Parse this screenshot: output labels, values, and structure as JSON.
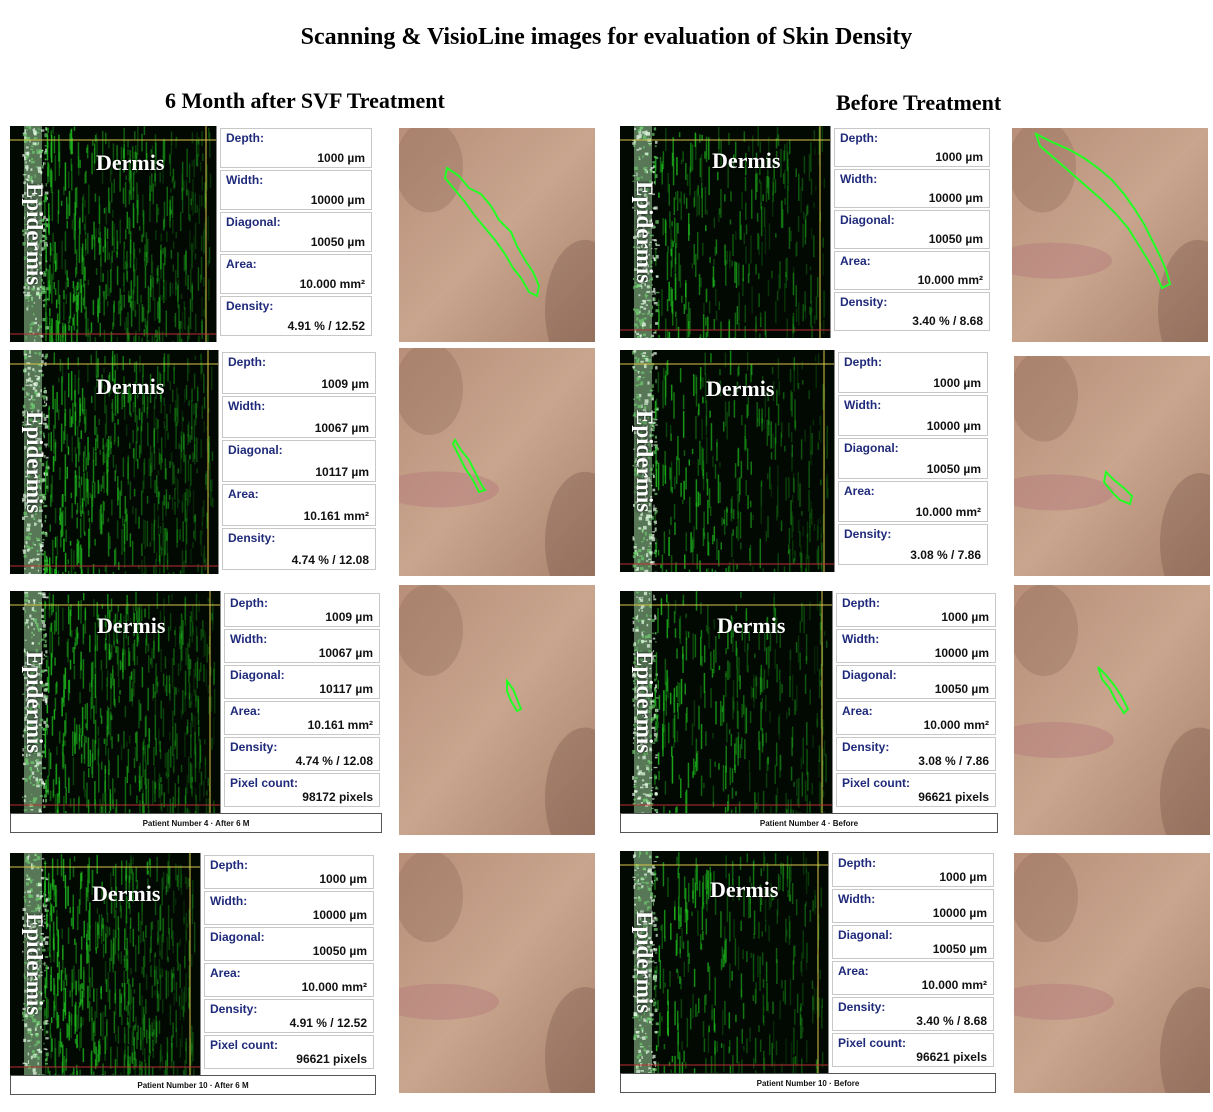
{
  "title": "Scanning & VisioLine images for evaluation of Skin Density",
  "columns": {
    "after": "6 Month after SVF Treatment",
    "before": "Before Treatment"
  },
  "labels": {
    "epidermis": "Epidermis",
    "dermis": "Dermis"
  },
  "fields": {
    "depth": "Depth:",
    "width": "Width:",
    "diagonal": "Diagonal:",
    "area": "Area:",
    "density": "Density:",
    "pixel": "Pixel count:"
  },
  "rows": [
    {
      "after": {
        "depth": "1000 µm",
        "width": "10000 µm",
        "diagonal": "10050 µm",
        "area": "10.000 mm²",
        "density": "4.91 %  /  12.52"
      },
      "before": {
        "depth": "1000 µm",
        "width": "10000 µm",
        "diagonal": "10050 µm",
        "area": "10.000 mm²",
        "density": "3.40 %  /  8.68"
      }
    },
    {
      "after": {
        "depth": "1009 µm",
        "width": "10067 µm",
        "diagonal": "10117 µm",
        "area": "10.161 mm²",
        "density": "4.74 %  /  12.08"
      },
      "before": {
        "depth": "1000 µm",
        "width": "10000 µm",
        "diagonal": "10050 µm",
        "area": "10.000 mm²",
        "density": "3.08 %  /  7.86"
      }
    },
    {
      "after": {
        "depth": "1009 µm",
        "width": "10067 µm",
        "diagonal": "10117 µm",
        "area": "10.161 mm²",
        "density": "4.74 %  /  12.08",
        "pixel": "98172 pixels",
        "footer": "Patient Number  4   ·   After 6 M"
      },
      "before": {
        "depth": "1000 µm",
        "width": "10000 µm",
        "diagonal": "10050 µm",
        "area": "10.000 mm²",
        "density": "3.08 %  /  7.86",
        "pixel": "96621 pixels",
        "footer": "Patient Number  4   ·        Before"
      }
    },
    {
      "after": {
        "depth": "1000 µm",
        "width": "10000 µm",
        "diagonal": "10050 µm",
        "area": "10.000 mm²",
        "density": "4.91 %  /  12.52",
        "pixel": "96621 pixels",
        "footer": "Patient Number  10   ·   After 6 M"
      },
      "before": {
        "depth": "1000 µm",
        "width": "10000 µm",
        "diagonal": "10050 µm",
        "area": "10.000 mm²",
        "density": "3.40 %  /  8.68",
        "pixel": "96621 pixels",
        "footer": "Patient Number  10   ·        Before"
      }
    }
  ],
  "colors": {
    "scan_green": "#1db81d",
    "trace_green": "#22ff22",
    "label_blue": "#1f2a7a",
    "skin": "#c9a58e"
  }
}
